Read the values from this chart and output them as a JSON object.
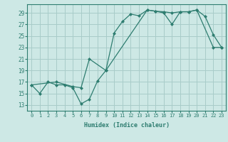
{
  "xlabel": "Humidex (Indice chaleur)",
  "background_color": "#cde8e5",
  "grid_color": "#a8ccc9",
  "line_color": "#2e7d70",
  "xlim": [
    -0.5,
    23.5
  ],
  "ylim": [
    12,
    30.5
  ],
  "yticks": [
    13,
    15,
    17,
    19,
    21,
    23,
    25,
    27,
    29
  ],
  "xticks": [
    0,
    1,
    2,
    3,
    4,
    5,
    6,
    7,
    8,
    9,
    10,
    11,
    12,
    13,
    14,
    15,
    16,
    17,
    18,
    19,
    20,
    21,
    22,
    23
  ],
  "line1_x": [
    0,
    1,
    2,
    3,
    4,
    5,
    6,
    7,
    8,
    9,
    10,
    11,
    12,
    13,
    14,
    15,
    16,
    17,
    18,
    19,
    20,
    21,
    22,
    23
  ],
  "line1_y": [
    16.5,
    15.0,
    17.0,
    16.5,
    16.5,
    16.0,
    13.2,
    14.0,
    17.2,
    19.0,
    25.5,
    27.5,
    28.8,
    28.5,
    29.5,
    29.3,
    29.2,
    29.0,
    29.2,
    29.2,
    29.5,
    28.4,
    25.2,
    23.0
  ],
  "line2_x": [
    0,
    3,
    5,
    6,
    7,
    9,
    14,
    15,
    16,
    17,
    18,
    19,
    20,
    22,
    23
  ],
  "line2_y": [
    16.5,
    17.0,
    16.2,
    16.0,
    21.0,
    19.0,
    29.5,
    29.3,
    29.0,
    27.0,
    29.2,
    29.2,
    29.5,
    23.0,
    23.0
  ]
}
